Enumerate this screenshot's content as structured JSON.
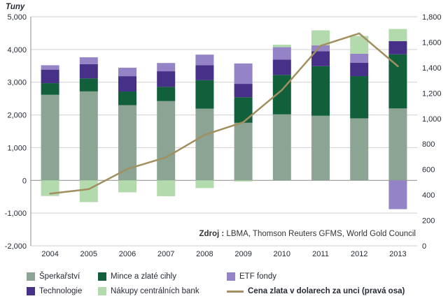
{
  "chart_data": {
    "type": "bar",
    "variant": "stacked-bars-with-line-overlay",
    "left_axis_title": "Tuny",
    "categories": [
      "2004",
      "2005",
      "2006",
      "2007",
      "2008",
      "2009",
      "2010",
      "2011",
      "2012",
      "2013"
    ],
    "series": [
      {
        "name": "Šperkařství",
        "color": "#8CA493",
        "values": [
          2616,
          2719,
          2300,
          2423,
          2193,
          1760,
          2017,
          1975,
          1896,
          2198
        ]
      },
      {
        "name": "Mince a zlaté cihly",
        "color": "#11603B",
        "values": [
          355,
          396,
          416,
          435,
          868,
          780,
          1205,
          1515,
          1289,
          1654
        ]
      },
      {
        "name": "Technologie",
        "color": "#463088",
        "values": [
          414,
          438,
          468,
          476,
          461,
          410,
          466,
          453,
          407,
          405
        ]
      },
      {
        "name": "ETF fondy",
        "color": "#9583C7",
        "values": [
          133,
          208,
          260,
          253,
          321,
          623,
          382,
          185,
          279,
          -880
        ]
      },
      {
        "name": "Nákupy centrálních bank",
        "color": "#B3DAAC",
        "values": [
          -479,
          -663,
          -365,
          -484,
          -235,
          -34,
          77,
          457,
          544,
          370
        ]
      }
    ],
    "line_series": {
      "name": "Cena zlata v dolarech za unci (pravá osa)",
      "color": "#A18F5F",
      "values": [
        410,
        445,
        604,
        695,
        872,
        972,
        1225,
        1572,
        1669,
        1411
      ]
    },
    "left_axis": {
      "min": -2000,
      "max": 5000,
      "step": 1000
    },
    "right_axis": {
      "min": 0,
      "max": 1800,
      "step": 200
    },
    "grid": "horizontal",
    "legend_position": "bottom",
    "source_prefix": "Zdroj :",
    "source_text": " LBMA, Thomson Reuters GFMS, World Gold Council"
  },
  "legend": {
    "rows": [
      [
        0,
        1,
        3
      ],
      [
        2,
        4,
        "line"
      ]
    ]
  },
  "colors": {
    "grid": "#CFCFCF",
    "zero_axis": "#8A8A8A",
    "axis_line": "#8A8A8A",
    "tick_text": "#262B36",
    "source_text": "#333333",
    "background": "#FFFFFF"
  }
}
